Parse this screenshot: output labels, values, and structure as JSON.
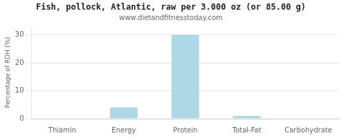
{
  "chart_data": {
    "type": "bar",
    "title": "Fish, pollock, Atlantic, raw per 3.000 oz (or 85.00 g)",
    "subtitle": "www.dietandfitnesstoday.com",
    "categories": [
      "Thiamin",
      "Energy",
      "Protein",
      "Total-Fat",
      "Carbohydrate"
    ],
    "values": [
      0.0,
      4.0,
      30.0,
      1.0,
      0.0
    ],
    "color": "#add8e6",
    "ylabel": "Percentage of RDH (%)",
    "ylim": [
      0,
      33
    ],
    "yticks": [
      0,
      10,
      20,
      30
    ],
    "grid": true
  }
}
